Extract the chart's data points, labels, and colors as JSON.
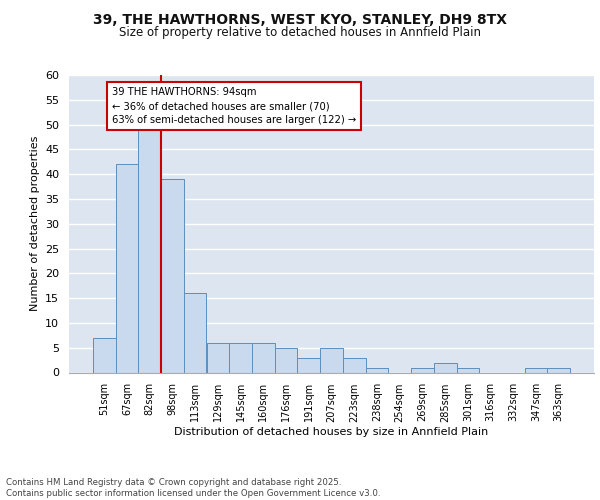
{
  "title1": "39, THE HAWTHORNS, WEST KYO, STANLEY, DH9 8TX",
  "title2": "Size of property relative to detached houses in Annfield Plain",
  "xlabel": "Distribution of detached houses by size in Annfield Plain",
  "ylabel": "Number of detached properties",
  "bin_labels": [
    "51sqm",
    "67sqm",
    "82sqm",
    "98sqm",
    "113sqm",
    "129sqm",
    "145sqm",
    "160sqm",
    "176sqm",
    "191sqm",
    "207sqm",
    "223sqm",
    "238sqm",
    "254sqm",
    "269sqm",
    "285sqm",
    "301sqm",
    "316sqm",
    "332sqm",
    "347sqm",
    "363sqm"
  ],
  "bin_counts": [
    7,
    42,
    50,
    39,
    16,
    6,
    6,
    6,
    5,
    3,
    5,
    3,
    1,
    0,
    1,
    2,
    1,
    0,
    0,
    1,
    1
  ],
  "bar_color": "#c9d9ee",
  "bar_edge_color": "#5a8fc0",
  "background_color": "#dde6f0",
  "grid_color": "#ffffff",
  "vline_color": "#cc0000",
  "annotation_text": "39 THE HAWTHORNS: 94sqm\n← 36% of detached houses are smaller (70)\n63% of semi-detached houses are larger (122) →",
  "annotation_box_color": "#ffffff",
  "annotation_box_edge": "#cc0000",
  "footer_text": "Contains HM Land Registry data © Crown copyright and database right 2025.\nContains public sector information licensed under the Open Government Licence v3.0.",
  "ylim": [
    0,
    60
  ],
  "yticks": [
    0,
    5,
    10,
    15,
    20,
    25,
    30,
    35,
    40,
    45,
    50,
    55,
    60
  ]
}
